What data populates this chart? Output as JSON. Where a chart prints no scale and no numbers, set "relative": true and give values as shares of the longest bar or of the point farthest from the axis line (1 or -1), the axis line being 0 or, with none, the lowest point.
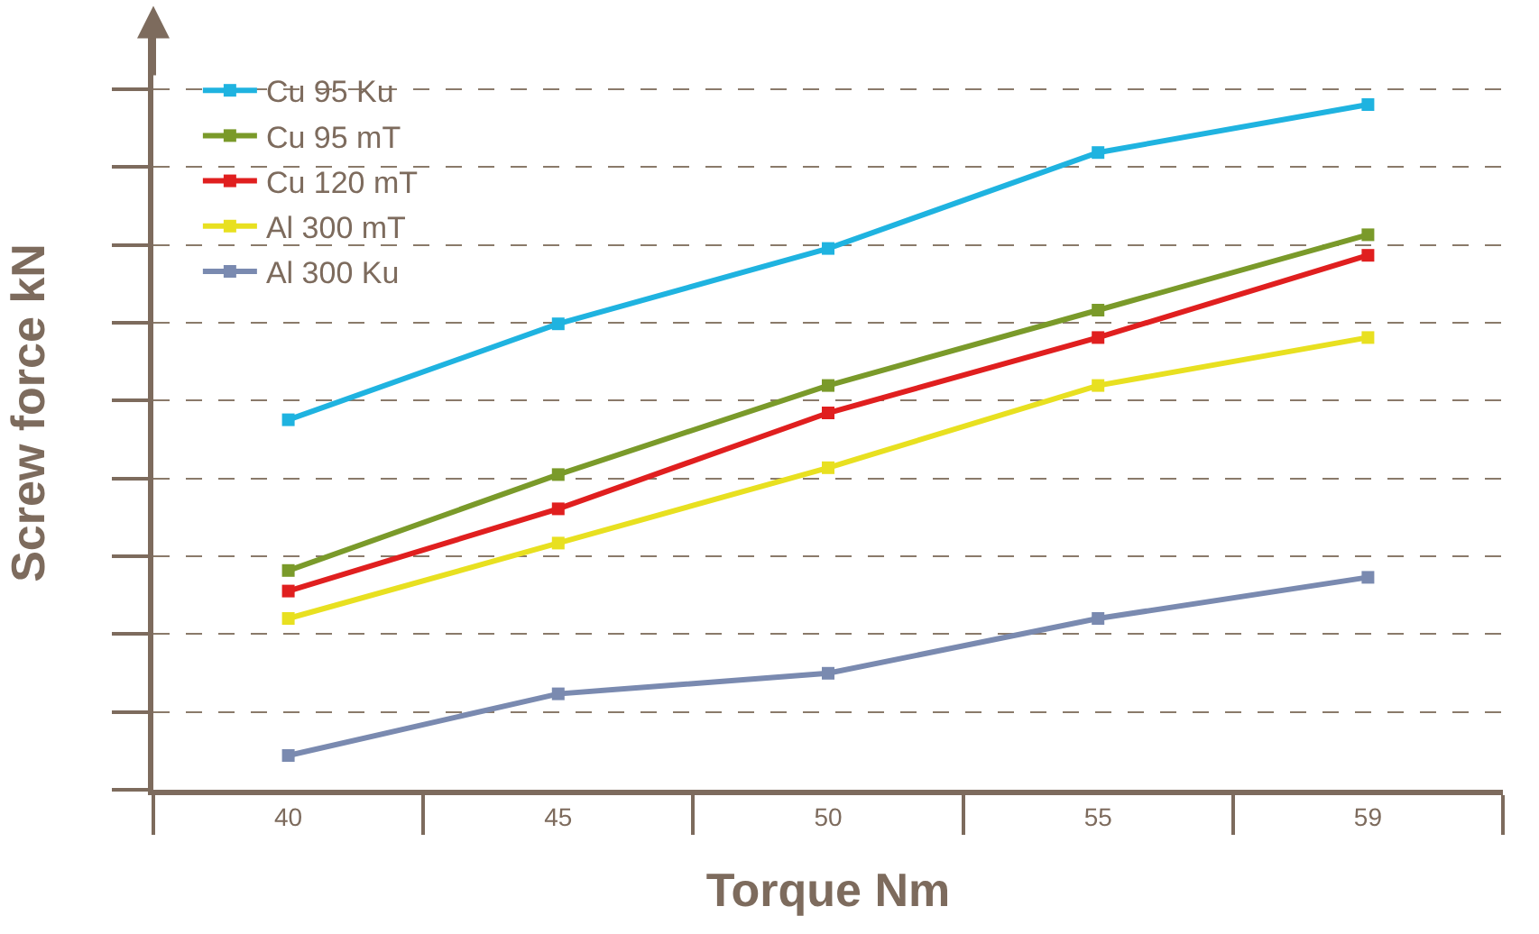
{
  "chart_data": {
    "type": "line",
    "xlabel": "Torque Nm",
    "ylabel": "Screw force kN",
    "categories": [
      "40",
      "45",
      "50",
      "55",
      "59"
    ],
    "relative": true,
    "grid": "y",
    "legend": "top left",
    "marker": "square",
    "line_style": "solid",
    "series": [
      {
        "name": "Cu 95 Ku",
        "color": "#1fb3e0",
        "values": [
          0.54,
          0.68,
          0.79,
          0.93,
          1
        ]
      },
      {
        "name": "Cu 95 mT",
        "color": "#7a9a2a",
        "values": [
          0.32,
          0.46,
          0.59,
          0.7,
          0.81
        ]
      },
      {
        "name": "Cu 120 mT",
        "color": "#e01f1f",
        "values": [
          0.29,
          0.41,
          0.55,
          0.66,
          0.78
        ]
      },
      {
        "name": "Al 300 mT",
        "color": "#e8e020",
        "values": [
          0.25,
          0.36,
          0.47,
          0.59,
          0.66
        ]
      },
      {
        "name": "Al 300 Ku",
        "color": "#7a8ab0",
        "values": [
          0.05,
          0.14,
          0.17,
          0.25,
          0.31
        ]
      }
    ]
  }
}
